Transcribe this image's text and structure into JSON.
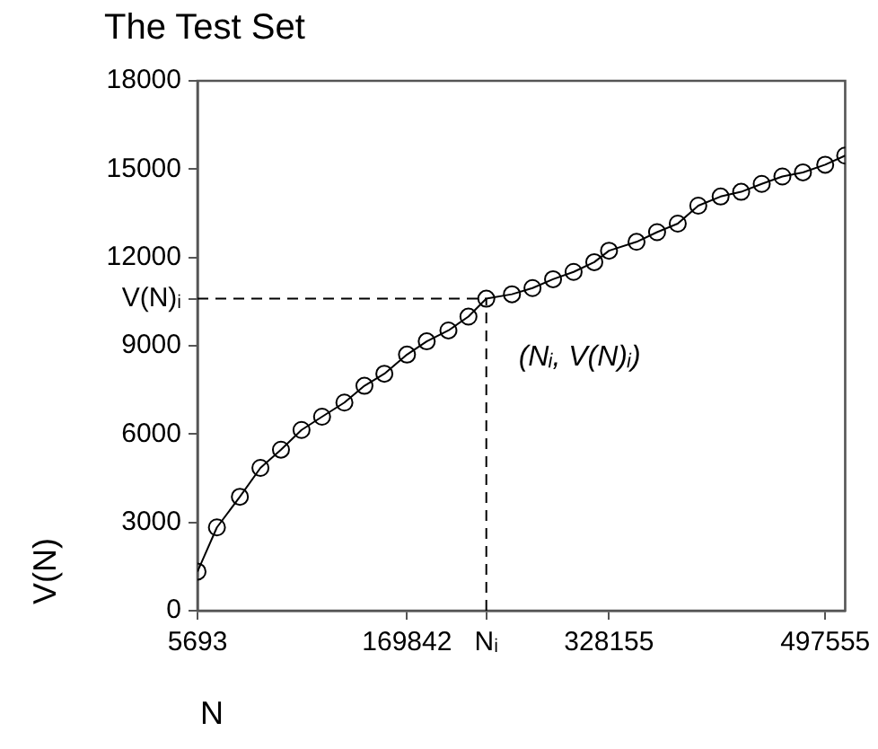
{
  "chart_data": {
    "type": "line",
    "title": "The Test Set",
    "xlabel": "N",
    "ylabel": "V(N)",
    "x": [
      5693,
      20900,
      38900,
      55000,
      71100,
      87200,
      103300,
      120800,
      136500,
      152100,
      169842,
      185300,
      202300,
      218000,
      232000,
      252100,
      268200,
      284300,
      300400,
      316600,
      328155,
      349700,
      365800,
      382000,
      398100,
      415600,
      431700,
      447800,
      464000,
      480100,
      497555,
      513200
    ],
    "series": [
      {
        "color": "#000000",
        "values": [
          1330,
          2830,
          3870,
          4850,
          5470,
          6140,
          6590,
          7070,
          7640,
          8050,
          8700,
          9150,
          9520,
          9990,
          10600,
          10750,
          10960,
          11260,
          11510,
          11840,
          12230,
          12530,
          12860,
          13150,
          13760,
          14070,
          14230,
          14500,
          14750,
          14890,
          15150,
          15460
        ]
      }
    ],
    "xlim": [
      5693,
      513200
    ],
    "xticks": [
      5693,
      169842,
      {
        "value": 232000,
        "label": "Nᵢ"
      },
      328155,
      497555
    ],
    "ylim": [
      0,
      18000
    ],
    "yticks": [
      0,
      3000,
      6000,
      9000,
      {
        "value": 10600,
        "label": "V(N)ᵢ"
      },
      12000,
      15000,
      18000
    ],
    "ref_lines": [
      {
        "axis": "x",
        "value": 232000,
        "line_style": "dashed",
        "color": "#000000"
      },
      {
        "axis": "y",
        "value": 10600,
        "line_style": "dashed",
        "color": "#000000"
      }
    ],
    "annotations": [
      "(Nᵢ, V(N)ᵢ)"
    ],
    "grid": false,
    "legend": false,
    "marker": "circle",
    "line_style": "solid"
  }
}
